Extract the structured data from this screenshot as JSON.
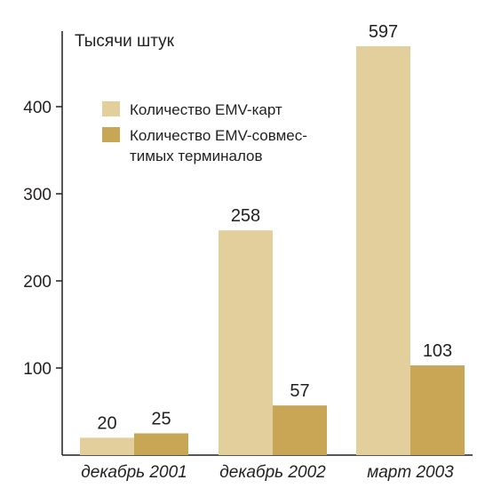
{
  "colors": {
    "cards": "#e3cf9c",
    "terminals": "#c9a655",
    "axis": "#231f20"
  },
  "chart_data": {
    "type": "bar",
    "ylabel": "Тысячи штук",
    "categories": [
      "декабрь 2001",
      "декабрь 2002",
      "март 2003"
    ],
    "series": [
      {
        "name": "Количество EMV-карт",
        "values": [
          20,
          258,
          597
        ],
        "labels": [
          "20",
          "258",
          "597"
        ]
      },
      {
        "name": "Количество EMV-совмес-тимых терминалов",
        "values": [
          25,
          57,
          103
        ],
        "labels": [
          "25",
          "57",
          "103"
        ]
      }
    ],
    "yticks": [
      "100",
      "200",
      "300",
      "400"
    ],
    "legend_position": "top-left"
  },
  "legend": {
    "cards": "Количество EMV-карт",
    "terminals_line1": "Количество EMV-совмес-",
    "terminals_line2": "тимых терминалов"
  }
}
